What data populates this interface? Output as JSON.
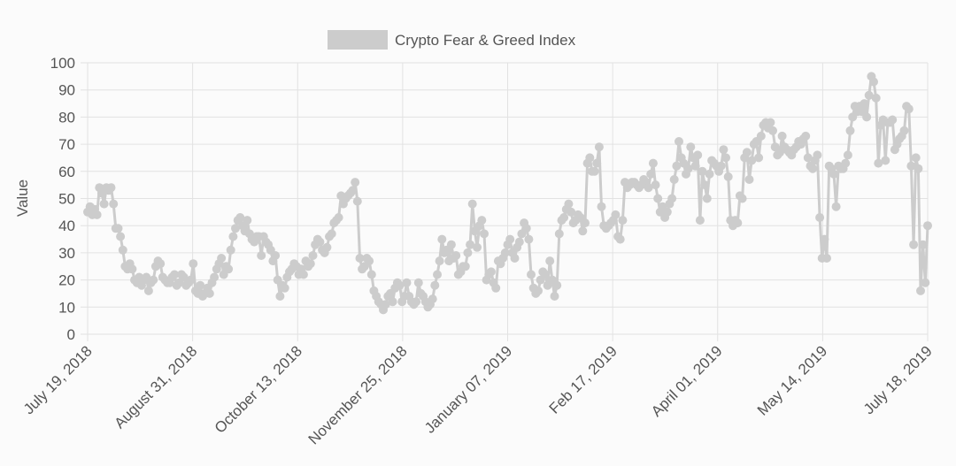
{
  "chart_data": {
    "type": "line",
    "title": "",
    "legend": {
      "label": "Crypto Fear & Greed Index",
      "color": "#cccccc",
      "position": "top-center"
    },
    "xlabel": "",
    "ylabel": "Value",
    "ylim": [
      0,
      100
    ],
    "yticks": [
      0,
      10,
      20,
      30,
      40,
      50,
      60,
      70,
      80,
      90,
      100
    ],
    "grid": true,
    "x_range": [
      "2018-07-19",
      "2019-07-18"
    ],
    "xtick_labels": [
      "July 19, 2018",
      "August 31, 2018",
      "October 13, 2018",
      "November 25, 2018",
      "January 07, 2019",
      "Feb 17, 2019",
      "April 01, 2019",
      "May 14, 2019",
      "July 18, 2019"
    ],
    "series": [
      {
        "name": "Crypto Fear & Greed Index",
        "color": "#cccccc",
        "values": [
          45,
          47,
          44,
          46,
          44,
          54,
          52,
          48,
          54,
          53,
          54,
          48,
          39,
          39,
          36,
          31,
          25,
          24,
          26,
          24,
          20,
          19,
          21,
          18,
          20,
          21,
          16,
          19,
          20,
          25,
          27,
          26,
          21,
          20,
          19,
          19,
          21,
          22,
          18,
          19,
          22,
          21,
          18,
          19,
          20,
          26,
          16,
          15,
          18,
          14,
          15,
          17,
          15,
          19,
          21,
          24,
          26,
          28,
          22,
          25,
          24,
          31,
          36,
          39,
          42,
          43,
          40,
          38,
          42,
          37,
          35,
          34,
          36,
          36,
          29,
          36,
          34,
          33,
          31,
          27,
          29,
          20,
          14,
          18,
          17,
          21,
          23,
          24,
          26,
          25,
          22,
          24,
          22,
          27,
          25,
          26,
          29,
          33,
          35,
          34,
          31,
          30,
          32,
          36,
          37,
          41,
          42,
          43,
          51,
          48,
          50,
          51,
          52,
          53,
          56,
          49,
          28,
          24,
          25,
          28,
          27,
          22,
          16,
          14,
          12,
          11,
          9,
          11,
          14,
          15,
          12,
          17,
          19,
          18,
          12,
          14,
          19,
          14,
          12,
          11,
          12,
          19,
          15,
          14,
          12,
          10,
          11,
          13,
          18,
          22,
          27,
          35,
          30,
          31,
          27,
          33,
          28,
          29,
          22,
          23,
          25,
          25,
          30,
          33,
          48,
          38,
          32,
          40,
          42,
          37,
          20,
          22,
          23,
          19,
          17,
          27,
          26,
          28,
          30,
          33,
          35,
          30,
          28,
          32,
          34,
          37,
          41,
          39,
          35,
          22,
          17,
          15,
          16,
          20,
          23,
          22,
          18,
          27,
          20,
          14,
          18,
          37,
          42,
          43,
          46,
          48,
          45,
          41,
          42,
          44,
          43,
          38,
          41,
          63,
          65,
          60,
          60,
          63,
          69,
          47,
          40,
          39,
          40,
          41,
          42,
          44,
          36,
          35,
          42,
          56,
          54,
          55,
          56,
          56,
          55,
          54,
          55,
          57,
          56,
          54,
          59,
          63,
          55,
          50,
          45,
          47,
          43,
          45,
          48,
          50,
          57,
          62,
          71,
          65,
          63,
          59,
          61,
          69,
          65,
          62,
          66,
          42,
          60,
          55,
          50,
          59,
          64,
          63,
          62,
          60,
          62,
          68,
          65,
          58,
          42,
          40,
          42,
          41,
          51,
          50,
          65,
          67,
          57,
          64,
          70,
          71,
          65,
          73,
          77,
          78,
          76,
          78,
          75,
          69,
          66,
          67,
          73,
          69,
          68,
          67,
          66,
          68,
          69,
          71,
          70,
          72,
          73,
          65,
          62,
          61,
          64,
          66,
          43,
          28,
          35,
          28,
          62,
          61,
          59,
          47,
          62,
          61,
          61,
          63,
          66,
          75,
          80,
          84,
          82,
          84,
          82,
          85,
          80,
          88,
          95,
          93,
          87,
          63,
          77,
          79,
          64,
          78,
          78,
          79,
          68,
          70,
          72,
          73,
          75,
          84,
          83,
          62,
          33,
          65,
          61,
          16,
          33,
          19,
          40
        ]
      }
    ]
  }
}
